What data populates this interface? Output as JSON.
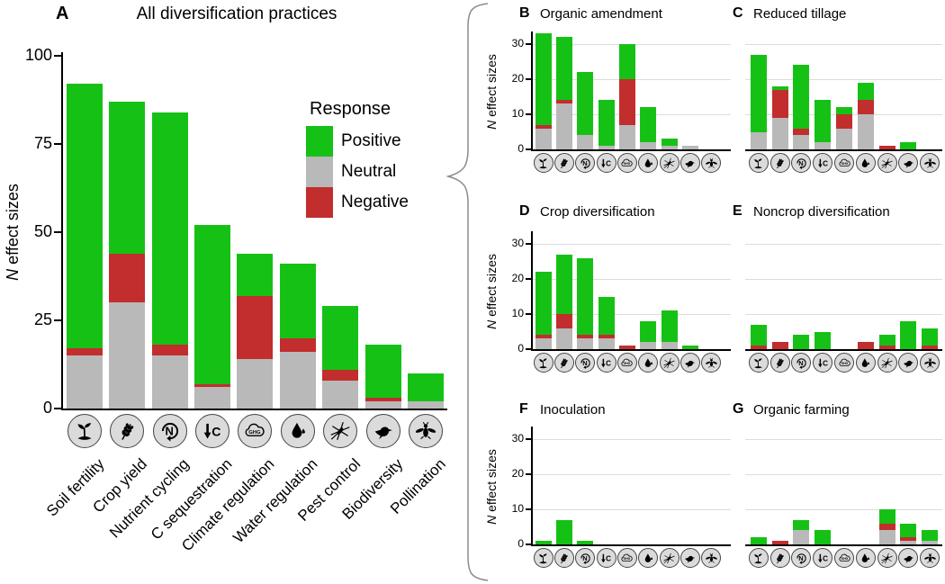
{
  "figure": {
    "description": "Multi-panel stacked bar figure of N effect sizes per ecosystem service for agricultural diversification practices"
  },
  "ylabel": "N effect sizes",
  "legend": {
    "title": "Response",
    "items": [
      {
        "label": "Positive",
        "color": "#16c116"
      },
      {
        "label": "Neutral",
        "color": "#b9b9b9"
      },
      {
        "label": "Negative",
        "color": "#c22d2d"
      }
    ]
  },
  "categories": [
    {
      "label": "Soil fertility",
      "icon": "seedling-icon"
    },
    {
      "label": "Crop yield",
      "icon": "wheat-icon"
    },
    {
      "label": "Nutrient cycling",
      "icon": "nutrient-cycling-icon"
    },
    {
      "label": "C sequestration",
      "icon": "carbon-sequestration-icon"
    },
    {
      "label": "Climate regulation",
      "icon": "ghg-cloud-icon"
    },
    {
      "label": "Water regulation",
      "icon": "water-droplet-icon"
    },
    {
      "label": "Pest control",
      "icon": "pest-insect-icon"
    },
    {
      "label": "Biodiversity",
      "icon": "bird-icon"
    },
    {
      "label": "Pollination",
      "icon": "bee-icon"
    }
  ],
  "chart_data": [
    {
      "panel": "A",
      "title": "All diversification practices",
      "type": "bar",
      "stacked": true,
      "ylabel": "N effect sizes",
      "ylim": [
        0,
        100
      ],
      "yticks": [
        0,
        25,
        50,
        75,
        100
      ],
      "grid": false,
      "yaxis_visible": true,
      "categories": [
        "Soil fertility",
        "Crop yield",
        "Nutrient cycling",
        "C sequestration",
        "Climate regulation",
        "Water regulation",
        "Pest control",
        "Biodiversity",
        "Pollination"
      ],
      "series": [
        {
          "name": "Neutral",
          "color": "#b9b9b9",
          "values": [
            15,
            30,
            15,
            6,
            14,
            16,
            8,
            2,
            2
          ]
        },
        {
          "name": "Negative",
          "color": "#c22d2d",
          "values": [
            2,
            14,
            3,
            1,
            18,
            4,
            3,
            1,
            0
          ]
        },
        {
          "name": "Positive",
          "color": "#16c116",
          "values": [
            75,
            43,
            66,
            45,
            12,
            21,
            18,
            15,
            8
          ]
        }
      ],
      "totals": [
        92,
        87,
        84,
        52,
        44,
        41,
        29,
        18,
        10
      ]
    },
    {
      "panel": "B",
      "title": "Organic amendment",
      "type": "bar",
      "stacked": true,
      "ylabel": "N effect sizes",
      "ylim": [
        0,
        33
      ],
      "yticks": [
        0,
        10,
        20,
        30
      ],
      "grid": true,
      "yaxis_visible": true,
      "categories": [
        "Soil fertility",
        "Crop yield",
        "Nutrient cycling",
        "C sequestration",
        "Climate regulation",
        "Water regulation",
        "Pest control",
        "Biodiversity",
        "Pollination"
      ],
      "series": [
        {
          "name": "Neutral",
          "color": "#b9b9b9",
          "values": [
            6,
            13,
            4,
            1,
            7,
            2,
            1,
            1,
            0
          ]
        },
        {
          "name": "Negative",
          "color": "#c22d2d",
          "values": [
            1,
            1,
            0,
            0,
            13,
            0,
            0,
            0,
            0
          ]
        },
        {
          "name": "Positive",
          "color": "#16c116",
          "values": [
            26,
            18,
            18,
            13,
            10,
            10,
            2,
            0,
            0
          ]
        }
      ],
      "totals": [
        33,
        32,
        22,
        14,
        30,
        12,
        3,
        1,
        0
      ]
    },
    {
      "panel": "C",
      "title": "Reduced tillage",
      "type": "bar",
      "stacked": true,
      "ylabel": "N effect sizes",
      "ylim": [
        0,
        33
      ],
      "yticks": [
        0,
        10,
        20,
        30
      ],
      "grid": true,
      "yaxis_visible": false,
      "categories": [
        "Soil fertility",
        "Crop yield",
        "Nutrient cycling",
        "C sequestration",
        "Climate regulation",
        "Water regulation",
        "Pest control",
        "Biodiversity",
        "Pollination"
      ],
      "series": [
        {
          "name": "Neutral",
          "color": "#b9b9b9",
          "values": [
            5,
            9,
            4,
            2,
            6,
            10,
            0,
            0,
            0
          ]
        },
        {
          "name": "Negative",
          "color": "#c22d2d",
          "values": [
            0,
            8,
            2,
            0,
            4,
            4,
            1,
            0,
            0
          ]
        },
        {
          "name": "Positive",
          "color": "#16c116",
          "values": [
            22,
            1,
            18,
            12,
            2,
            5,
            0,
            2,
            0
          ]
        }
      ],
      "totals": [
        27,
        18,
        24,
        14,
        12,
        19,
        1,
        2,
        0
      ]
    },
    {
      "panel": "D",
      "title": "Crop diversification",
      "type": "bar",
      "stacked": true,
      "ylabel": "N effect sizes",
      "ylim": [
        0,
        33
      ],
      "yticks": [
        0,
        10,
        20,
        30
      ],
      "grid": true,
      "yaxis_visible": true,
      "categories": [
        "Soil fertility",
        "Crop yield",
        "Nutrient cycling",
        "C sequestration",
        "Climate regulation",
        "Water regulation",
        "Pest control",
        "Biodiversity",
        "Pollination"
      ],
      "series": [
        {
          "name": "Neutral",
          "color": "#b9b9b9",
          "values": [
            3,
            6,
            3,
            3,
            0,
            2,
            2,
            0,
            0
          ]
        },
        {
          "name": "Negative",
          "color": "#c22d2d",
          "values": [
            1,
            4,
            1,
            1,
            1,
            0,
            0,
            0,
            0
          ]
        },
        {
          "name": "Positive",
          "color": "#16c116",
          "values": [
            18,
            17,
            22,
            11,
            0,
            6,
            9,
            1,
            0
          ]
        }
      ],
      "totals": [
        22,
        27,
        26,
        15,
        1,
        8,
        11,
        1,
        0
      ]
    },
    {
      "panel": "E",
      "title": "Noncrop diversification",
      "type": "bar",
      "stacked": true,
      "ylabel": "N effect sizes",
      "ylim": [
        0,
        33
      ],
      "yticks": [
        0,
        10,
        20,
        30
      ],
      "grid": true,
      "yaxis_visible": false,
      "categories": [
        "Soil fertility",
        "Crop yield",
        "Nutrient cycling",
        "C sequestration",
        "Climate regulation",
        "Water regulation",
        "Pest control",
        "Biodiversity",
        "Pollination"
      ],
      "series": [
        {
          "name": "Neutral",
          "color": "#b9b9b9",
          "values": [
            0,
            0,
            0,
            0,
            0,
            0,
            0,
            0,
            0
          ]
        },
        {
          "name": "Negative",
          "color": "#c22d2d",
          "values": [
            1,
            2,
            0,
            0,
            0,
            2,
            1,
            0,
            1
          ]
        },
        {
          "name": "Positive",
          "color": "#16c116",
          "values": [
            6,
            0,
            4,
            5,
            0,
            0,
            3,
            8,
            5
          ]
        }
      ],
      "totals": [
        7,
        2,
        4,
        5,
        0,
        2,
        4,
        8,
        6
      ]
    },
    {
      "panel": "F",
      "title": "Inoculation",
      "type": "bar",
      "stacked": true,
      "ylabel": "N effect sizes",
      "ylim": [
        0,
        33
      ],
      "yticks": [
        0,
        10,
        20,
        30
      ],
      "grid": true,
      "yaxis_visible": true,
      "categories": [
        "Soil fertility",
        "Crop yield",
        "Nutrient cycling",
        "C sequestration",
        "Climate regulation",
        "Water regulation",
        "Pest control",
        "Biodiversity",
        "Pollination"
      ],
      "series": [
        {
          "name": "Neutral",
          "color": "#b9b9b9",
          "values": [
            0,
            0,
            0,
            0,
            0,
            0,
            0,
            0,
            0
          ]
        },
        {
          "name": "Negative",
          "color": "#c22d2d",
          "values": [
            0,
            0,
            0,
            0,
            0,
            0,
            0,
            0,
            0
          ]
        },
        {
          "name": "Positive",
          "color": "#16c116",
          "values": [
            1,
            7,
            1,
            0,
            0,
            0,
            0,
            0,
            0
          ]
        }
      ],
      "totals": [
        1,
        7,
        1,
        0,
        0,
        0,
        0,
        0,
        0
      ]
    },
    {
      "panel": "G",
      "title": "Organic farming",
      "type": "bar",
      "stacked": true,
      "ylabel": "N effect sizes",
      "ylim": [
        0,
        33
      ],
      "yticks": [
        0,
        10,
        20,
        30
      ],
      "grid": true,
      "yaxis_visible": false,
      "categories": [
        "Soil fertility",
        "Crop yield",
        "Nutrient cycling",
        "C sequestration",
        "Climate regulation",
        "Water regulation",
        "Pest control",
        "Biodiversity",
        "Pollination"
      ],
      "series": [
        {
          "name": "Neutral",
          "color": "#b9b9b9",
          "values": [
            0,
            0,
            4,
            0,
            0,
            0,
            4,
            1,
            1
          ]
        },
        {
          "name": "Negative",
          "color": "#c22d2d",
          "values": [
            0,
            1,
            0,
            0,
            0,
            0,
            2,
            1,
            0
          ]
        },
        {
          "name": "Positive",
          "color": "#16c116",
          "values": [
            2,
            0,
            3,
            4,
            0,
            0,
            4,
            4,
            3
          ]
        }
      ],
      "totals": [
        2,
        1,
        7,
        4,
        0,
        0,
        10,
        6,
        4
      ]
    }
  ]
}
